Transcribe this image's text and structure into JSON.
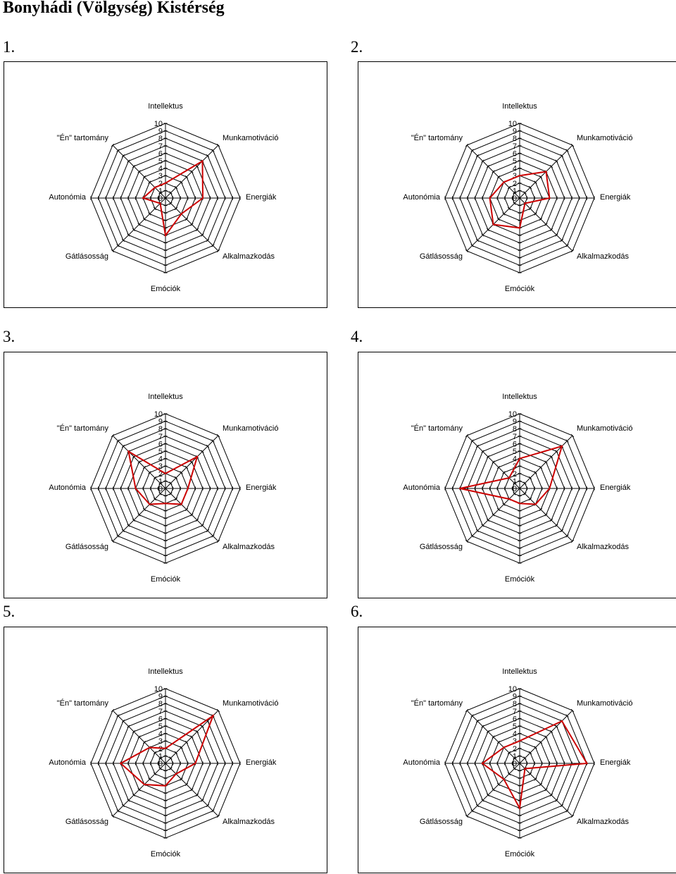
{
  "title": "Bonyhádi (Völgység) Kistérség",
  "colors": {
    "series": "#cc0000",
    "grid": "#000000"
  },
  "chart_data": [
    {
      "number": "1.",
      "type": "radar",
      "categories": [
        "Intellektus",
        "Munkamotiváció",
        "Energiák",
        "Alkalmazkodás",
        "Emóciók",
        "Gátlásosság",
        "Autonómia",
        "\"Én\" tartomány"
      ],
      "ticks": [
        "0",
        "1",
        "2",
        "3",
        "4",
        "5",
        "6",
        "7",
        "8",
        "9",
        "10"
      ],
      "range": [
        0,
        10
      ],
      "values": [
        2,
        7,
        5,
        3,
        5,
        1,
        3,
        2
      ]
    },
    {
      "number": "2.",
      "type": "radar",
      "categories": [
        "Intellektus",
        "Munkamotiváció",
        "Energiák",
        "Alkalmazkodás",
        "Emóciók",
        "Gátlásosság",
        "Autonómia",
        "\"Én\" tartomány"
      ],
      "ticks": [
        "0",
        "1",
        "2",
        "3",
        "4",
        "5",
        "6",
        "7",
        "8",
        "9",
        "10"
      ],
      "range": [
        0,
        10
      ],
      "values": [
        3,
        5,
        4,
        1,
        4,
        5,
        4,
        3
      ]
    },
    {
      "number": "3.",
      "type": "radar",
      "categories": [
        "Intellektus",
        "Munkamotiváció",
        "Energiák",
        "Alkalmazkodás",
        "Emóciók",
        "Gátlásosság",
        "Autonómia",
        "\"Én\" tartomány"
      ],
      "ticks": [
        "0",
        "1",
        "2",
        "3",
        "4",
        "5",
        "6",
        "7",
        "8",
        "9",
        "10"
      ],
      "range": [
        0,
        10
      ],
      "values": [
        2,
        6,
        3,
        3,
        2,
        3,
        4,
        7
      ]
    },
    {
      "number": "4.",
      "type": "radar",
      "categories": [
        "Intellektus",
        "Munkamotiváció",
        "Energiák",
        "Alkalmazkodás",
        "Emóciók",
        "Gátlásosság",
        "Autonómia",
        "\"Én\" tartomány"
      ],
      "ticks": [
        "0",
        "1",
        "2",
        "3",
        "4",
        "5",
        "6",
        "7",
        "8",
        "9",
        "10"
      ],
      "range": [
        0,
        10
      ],
      "values": [
        4,
        8,
        4,
        3,
        2,
        2,
        8,
        2
      ]
    },
    {
      "number": "5.",
      "type": "radar",
      "categories": [
        "Intellektus",
        "Munkamotiváció",
        "Energiák",
        "Alkalmazkodás",
        "Emóciók",
        "Gátlásosság",
        "Autonómia",
        "\"Én\" tartomány"
      ],
      "ticks": [
        "0",
        "1",
        "2",
        "3",
        "4",
        "5",
        "6",
        "7",
        "8",
        "9",
        "10"
      ],
      "range": [
        0,
        10
      ],
      "values": [
        2,
        9,
        4,
        2,
        3,
        4,
        6,
        3
      ]
    },
    {
      "number": "6.",
      "type": "radar",
      "categories": [
        "Intellektus",
        "Munkamotiváció",
        "Energiák",
        "Alkalmazkodás",
        "Emóciók",
        "Gátlásosság",
        "Autonómia",
        "\"Én\" tartomány"
      ],
      "ticks": [
        "0",
        "1",
        "2",
        "3",
        "4",
        "5",
        "6",
        "7",
        "8",
        "9",
        "10"
      ],
      "range": [
        0,
        10
      ],
      "values": [
        3,
        8,
        9,
        1,
        6,
        3,
        5,
        3
      ]
    }
  ]
}
